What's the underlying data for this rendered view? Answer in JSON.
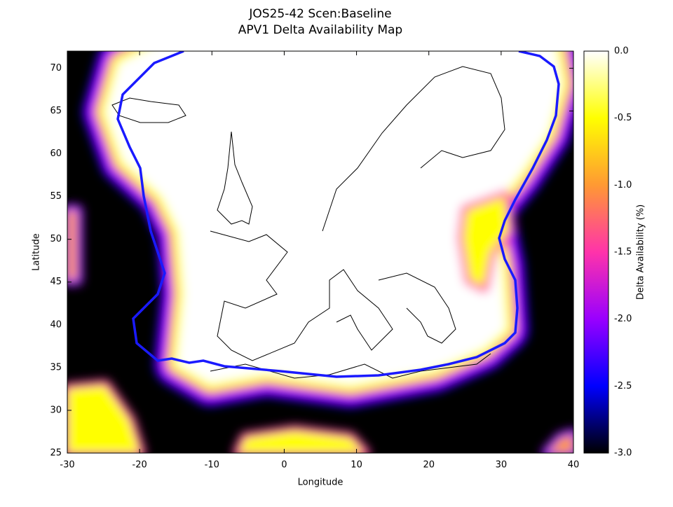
{
  "chart_data": {
    "type": "heatmap",
    "title": "JOS25-42 Scen:Baseline",
    "subtitle": "APV1 Delta Availability Map",
    "x_label": "Longitude",
    "y_label": "Latitude",
    "xlim": [
      -30,
      40
    ],
    "ylim": [
      25,
      72
    ],
    "xticks": [
      -30,
      -20,
      -10,
      0,
      10,
      20,
      30,
      40
    ],
    "yticks": [
      25,
      30,
      35,
      40,
      45,
      50,
      55,
      60,
      65,
      70
    ],
    "colorbar": {
      "label": "Delta Availability (%)",
      "lim": [
        -3,
        0
      ],
      "ticks": [
        {
          "value": 0,
          "label": "0.0"
        },
        -0.5,
        {
          "value": -1,
          "label": "-1.0"
        },
        -1.5,
        {
          "value": -2,
          "label": "-2.0"
        },
        -2.5,
        {
          "value": -3,
          "label": "-3.0"
        }
      ],
      "colormap": [
        "#000000",
        "#0000ff",
        "#9900ff",
        "#ff33aa",
        "#ff9933",
        "#ffff00",
        "#ffffff"
      ]
    },
    "contour_color": "#1a1aff"
  }
}
